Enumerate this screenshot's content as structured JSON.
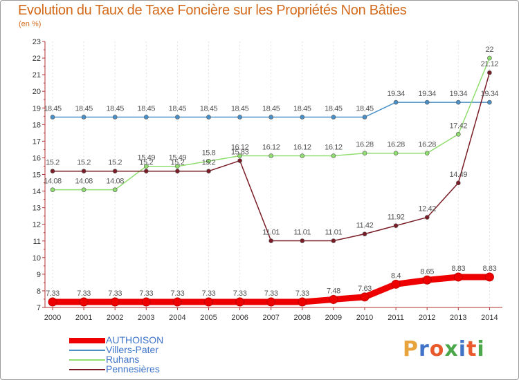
{
  "title": "Evolution du Taux de Taxe Foncière sur les Propriétés Non Bâties",
  "unit_label": "(en %)",
  "logo": {
    "letters": [
      "P",
      "r",
      "o",
      "x",
      "i",
      "t",
      "i"
    ],
    "colors": [
      "#e8a33d",
      "#3f74c9",
      "#e85a2c",
      "#4aa84a",
      "#3f74c9",
      "#e85a2c",
      "#4aa84a"
    ]
  },
  "chart_data": {
    "type": "line",
    "title": "Evolution du Taux de Taxe Foncière sur les Propriétés Non Bâties",
    "ylabel": "(en %)",
    "xlabel": "",
    "ylim": [
      7,
      23
    ],
    "yticks": [
      7,
      8,
      9,
      10,
      11,
      12,
      13,
      14,
      15,
      16,
      17,
      18,
      19,
      20,
      21,
      22,
      23
    ],
    "x": [
      "2000",
      "2001",
      "2002",
      "2003",
      "2004",
      "2005",
      "2006",
      "2007",
      "2008",
      "2009",
      "2010",
      "2011",
      "2012",
      "2013",
      "2014"
    ],
    "series": [
      {
        "name": "AUTHOISON",
        "color": "#ee0000",
        "width": 9,
        "values": [
          7.33,
          7.33,
          7.33,
          7.33,
          7.33,
          7.33,
          7.33,
          7.33,
          7.33,
          7.48,
          7.63,
          8.4,
          8.65,
          8.83,
          8.83
        ],
        "labels": [
          "7.33",
          "7.33",
          "7.33",
          "7.33",
          "7.33",
          "7.33",
          "7.33",
          "7.33",
          "7.33",
          "7.48",
          "7.63",
          "8.4",
          "8.65",
          "8.83",
          "8.83"
        ]
      },
      {
        "name": "Villers-Pater",
        "color": "#4a90c8",
        "width": 1.5,
        "values": [
          18.45,
          18.45,
          18.45,
          18.45,
          18.45,
          18.45,
          18.45,
          18.45,
          18.45,
          18.45,
          18.45,
          19.34,
          19.34,
          19.34,
          19.34
        ],
        "labels": [
          "18.45",
          "18.45",
          "18.45",
          "18.45",
          "18.45",
          "18.45",
          "18.45",
          "18.45",
          "18.45",
          "18.45",
          "18.45",
          "19.34",
          "19.34",
          "19.34",
          "19.34"
        ]
      },
      {
        "name": "Ruhans",
        "color": "#90dd70",
        "width": 1.5,
        "values": [
          14.08,
          14.08,
          14.08,
          15.49,
          15.49,
          15.8,
          16.12,
          16.12,
          16.12,
          16.12,
          16.28,
          16.28,
          16.28,
          17.42,
          22
        ],
        "labels": [
          "14.08",
          "14.08",
          "14.08",
          "15.49",
          "15.49",
          "15.8",
          "16.12",
          "16.12",
          "16.12",
          "16.12",
          "16.28",
          "16.28",
          "16.28",
          "17.42",
          "22"
        ]
      },
      {
        "name": "Pennesières",
        "color": "#7a1c25",
        "width": 1.5,
        "values": [
          15.2,
          15.2,
          15.2,
          15.2,
          15.2,
          15.2,
          15.83,
          11.01,
          11.01,
          11.01,
          11.42,
          11.92,
          12.42,
          14.49,
          21.12
        ],
        "labels": [
          "15.2",
          "15.2",
          "15.2",
          "15.2",
          "15.2",
          "15.2",
          "15.83",
          "11.01",
          "11.01",
          "11.01",
          "11.42",
          "11.92",
          "12.42",
          "14.49",
          "21.12"
        ]
      }
    ],
    "legend_position": "bottom-left"
  }
}
